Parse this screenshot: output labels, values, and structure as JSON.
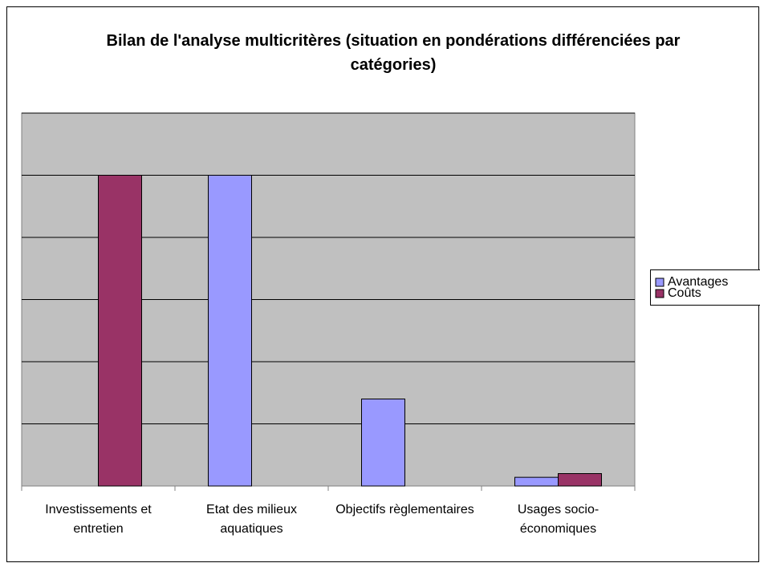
{
  "chart_data": {
    "type": "bar",
    "title": "Bilan de l'analyse multicritères (situation en pondérations différenciées par catégories)",
    "categories": [
      "Investissements et entretien",
      "Etat des milieux aquatiques",
      "Objectifs règlementaires",
      "Usages socio-économiques"
    ],
    "series": [
      {
        "name": "Avantages",
        "color": "#9999ff",
        "values": [
          0,
          5,
          1.4,
          0.14
        ]
      },
      {
        "name": "Coûts",
        "color": "#993366",
        "values": [
          5,
          0,
          0,
          0.2
        ]
      }
    ],
    "ylim": [
      0,
      6
    ],
    "yticks": [
      0,
      1,
      2,
      3,
      4,
      5,
      6
    ],
    "grid": true,
    "legend": "right"
  }
}
